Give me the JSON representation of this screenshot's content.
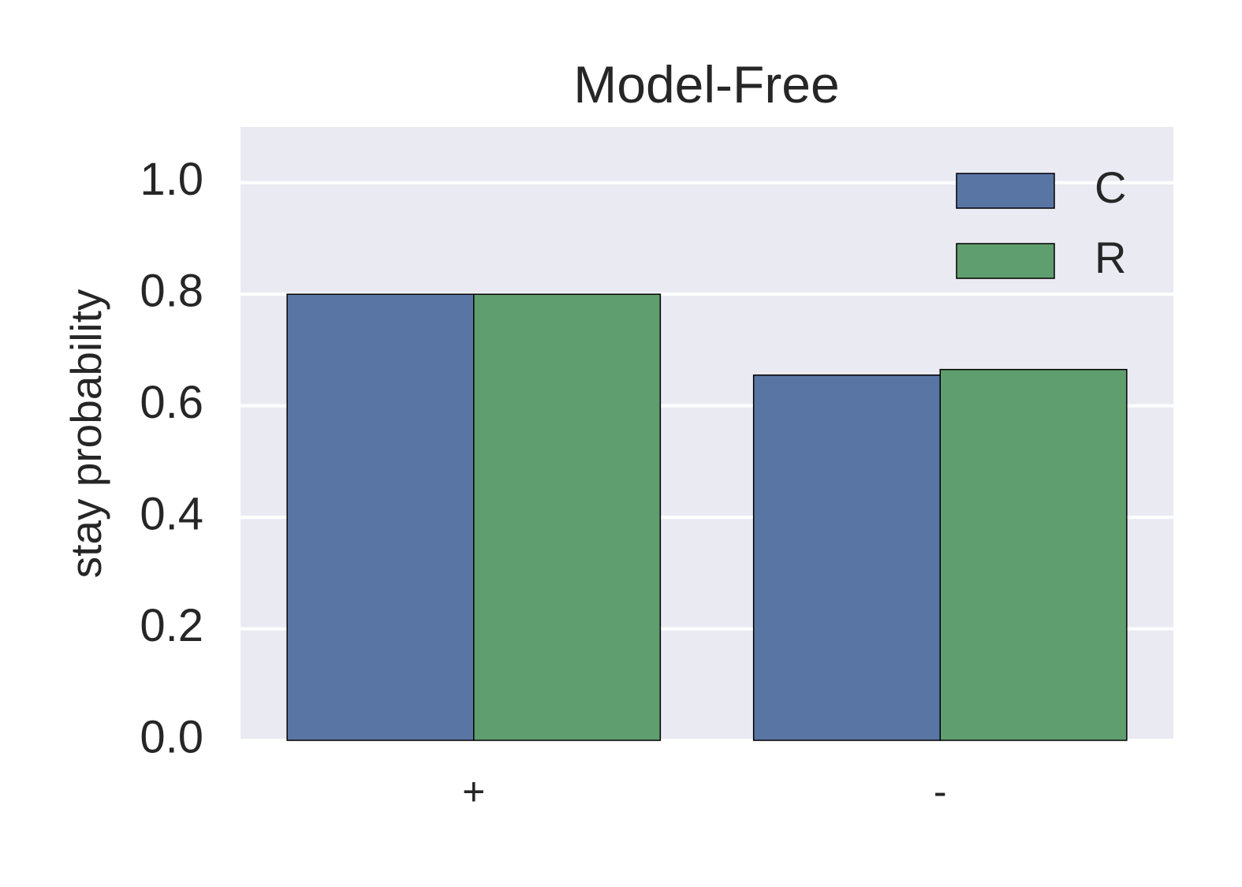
{
  "chart_data": {
    "type": "bar",
    "title": "Model-Free",
    "xlabel": "",
    "ylabel": "stay probability",
    "categories": [
      "+",
      "-"
    ],
    "series": [
      {
        "name": "C",
        "color": "#5975a4",
        "values": [
          0.8,
          0.655
        ]
      },
      {
        "name": "R",
        "color": "#5f9e6e",
        "values": [
          0.8,
          0.665
        ]
      }
    ],
    "ylim": [
      0,
      1.1
    ],
    "yticks": [
      0.0,
      0.2,
      0.4,
      0.6,
      0.8,
      1.0
    ],
    "ytick_labels": [
      "0.0",
      "0.2",
      "0.4",
      "0.6",
      "0.8",
      "1.0"
    ],
    "grid": true,
    "legend_position": "top-right",
    "background_color": "#eaeaf2",
    "grid_color": "#ffffff"
  }
}
